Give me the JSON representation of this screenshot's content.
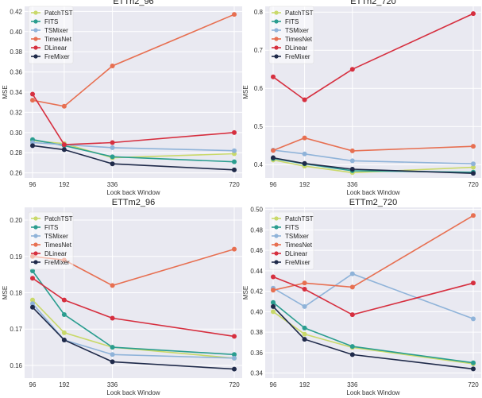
{
  "chart_data": [
    {
      "type": "line",
      "title": "ETTh2_96",
      "xlabel": "Look back Window",
      "ylabel": "MSE",
      "x": [
        96,
        192,
        336,
        720
      ],
      "xticks": [
        "96",
        "192",
        "336",
        "720"
      ],
      "ylim": [
        0.255,
        0.425
      ],
      "yticks": [
        0.26,
        0.28,
        0.3,
        0.32,
        0.34,
        0.36,
        0.38,
        0.4,
        0.42
      ],
      "ytick_labels": [
        "0.26",
        "0.28",
        "0.30",
        "0.32",
        "0.34",
        "0.36",
        "0.38",
        "0.40",
        "0.42"
      ],
      "legend_position": "top-left",
      "grid": true,
      "series": [
        {
          "name": "PatchTST",
          "color": "#c9d96a",
          "values": [
            0.292,
            0.289,
            0.275,
            0.279
          ]
        },
        {
          "name": "FITS",
          "color": "#2a9d8f",
          "values": [
            0.293,
            0.287,
            0.276,
            0.271
          ]
        },
        {
          "name": "TSMixer",
          "color": "#8fb3d9",
          "values": [
            0.29,
            0.288,
            0.285,
            0.282
          ]
        },
        {
          "name": "TimesNet",
          "color": "#e76f51",
          "values": [
            0.332,
            0.326,
            0.366,
            0.417
          ]
        },
        {
          "name": "DLinear",
          "color": "#d62f3f",
          "values": [
            0.338,
            0.288,
            0.29,
            0.3
          ]
        },
        {
          "name": "FreMixer",
          "color": "#1f2a4a",
          "values": [
            0.287,
            0.283,
            0.269,
            0.263
          ]
        }
      ]
    },
    {
      "type": "line",
      "title": "ETTh2_720",
      "xlabel": "Look back Window",
      "ylabel": "MSE",
      "x": [
        96,
        192,
        336,
        720
      ],
      "xticks": [
        "96",
        "192",
        "336",
        "720"
      ],
      "ylim": [
        0.365,
        0.815
      ],
      "yticks": [
        0.4,
        0.5,
        0.6,
        0.7,
        0.8
      ],
      "ytick_labels": [
        "0.4",
        "0.5",
        "0.6",
        "0.7",
        "0.8"
      ],
      "legend_position": "top-left",
      "grid": true,
      "series": [
        {
          "name": "PatchTST",
          "color": "#c9d96a",
          "values": [
            0.412,
            0.396,
            0.379,
            0.393
          ]
        },
        {
          "name": "FITS",
          "color": "#2a9d8f",
          "values": [
            0.416,
            0.402,
            0.384,
            0.38
          ]
        },
        {
          "name": "TSMixer",
          "color": "#8fb3d9",
          "values": [
            0.438,
            0.428,
            0.41,
            0.402
          ]
        },
        {
          "name": "TimesNet",
          "color": "#e76f51",
          "values": [
            0.437,
            0.47,
            0.436,
            0.448
          ]
        },
        {
          "name": "DLinear",
          "color": "#d62f3f",
          "values": [
            0.63,
            0.57,
            0.65,
            0.796
          ]
        },
        {
          "name": "FreMixer",
          "color": "#1f2a4a",
          "values": [
            0.418,
            0.403,
            0.388,
            0.377
          ]
        }
      ]
    },
    {
      "type": "line",
      "title": "ETTm2_96",
      "xlabel": "Look back Window",
      "ylabel": "MSE",
      "x": [
        96,
        192,
        336,
        720
      ],
      "xticks": [
        "96",
        "192",
        "336",
        "720"
      ],
      "ylim": [
        0.1565,
        0.2035
      ],
      "yticks": [
        0.16,
        0.17,
        0.18,
        0.19,
        0.2
      ],
      "ytick_labels": [
        "0.16",
        "0.17",
        "0.18",
        "0.19",
        "0.20"
      ],
      "legend_position": "top-left",
      "grid": true,
      "series": [
        {
          "name": "PatchTST",
          "color": "#c9d96a",
          "values": [
            0.178,
            0.169,
            0.165,
            0.162
          ]
        },
        {
          "name": "FITS",
          "color": "#2a9d8f",
          "values": [
            0.186,
            0.174,
            0.165,
            0.163
          ]
        },
        {
          "name": "TSMixer",
          "color": "#8fb3d9",
          "values": [
            0.177,
            0.167,
            0.163,
            0.162
          ]
        },
        {
          "name": "TimesNet",
          "color": "#e76f51",
          "values": [
            0.19,
            0.189,
            0.182,
            0.192
          ]
        },
        {
          "name": "DLinear",
          "color": "#d62f3f",
          "values": [
            0.184,
            0.178,
            0.173,
            0.168
          ]
        },
        {
          "name": "FreMixer",
          "color": "#1f2a4a",
          "values": [
            0.176,
            0.167,
            0.161,
            0.159
          ]
        }
      ]
    },
    {
      "type": "line",
      "title": "ETTm2_720",
      "xlabel": "Look back Window",
      "ylabel": "MSE",
      "x": [
        96,
        192,
        336,
        720
      ],
      "xticks": [
        "96",
        "192",
        "336",
        "720"
      ],
      "ylim": [
        0.335,
        0.502
      ],
      "yticks": [
        0.34,
        0.36,
        0.38,
        0.4,
        0.42,
        0.44,
        0.46,
        0.48,
        0.5
      ],
      "ytick_labels": [
        "0.34",
        "0.36",
        "0.38",
        "0.40",
        "0.42",
        "0.44",
        "0.46",
        "0.48",
        "0.50"
      ],
      "legend_position": "top-left",
      "grid": true,
      "series": [
        {
          "name": "PatchTST",
          "color": "#c9d96a",
          "values": [
            0.4,
            0.378,
            0.365,
            0.349
          ]
        },
        {
          "name": "FITS",
          "color": "#2a9d8f",
          "values": [
            0.409,
            0.384,
            0.366,
            0.35
          ]
        },
        {
          "name": "TSMixer",
          "color": "#8fb3d9",
          "values": [
            0.423,
            0.405,
            0.437,
            0.393
          ]
        },
        {
          "name": "TimesNet",
          "color": "#e76f51",
          "values": [
            0.421,
            0.428,
            0.424,
            0.494
          ]
        },
        {
          "name": "DLinear",
          "color": "#d62f3f",
          "values": [
            0.434,
            0.422,
            0.397,
            0.428
          ]
        },
        {
          "name": "FreMixer",
          "color": "#1f2a4a",
          "values": [
            0.405,
            0.373,
            0.358,
            0.344
          ]
        }
      ]
    }
  ]
}
